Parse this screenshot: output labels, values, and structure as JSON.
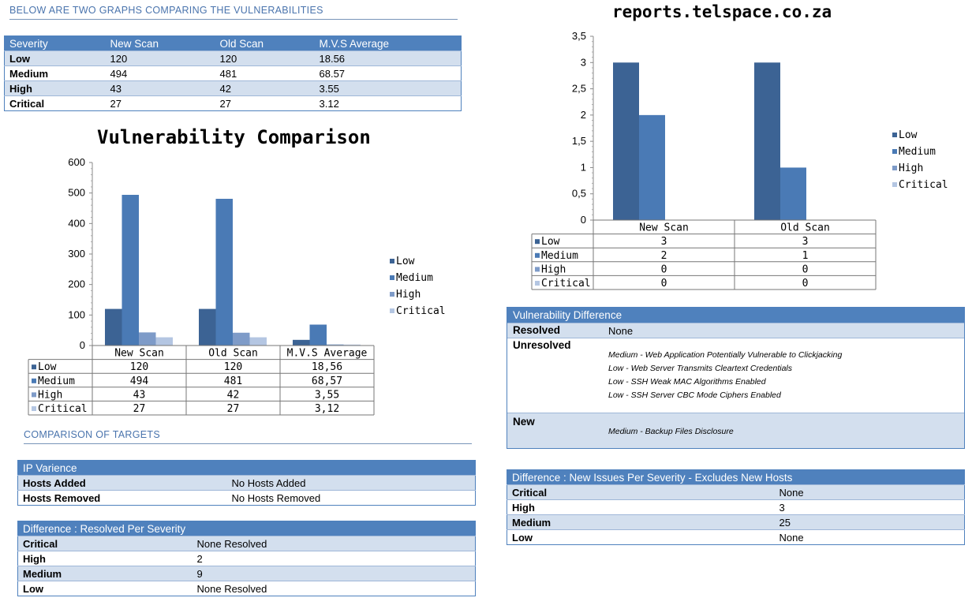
{
  "intro_heading": "BELOW ARE TWO GRAPHS COMPARING THE VULNERABILITIES",
  "summary_table": {
    "headers": [
      "Severity",
      "New Scan",
      "Old Scan",
      "M.V.S Average"
    ],
    "rows": [
      [
        "Low",
        "120",
        "120",
        "18.56"
      ],
      [
        "Medium",
        "494",
        "481",
        "68.57"
      ],
      [
        "High",
        "43",
        "42",
        "3.55"
      ],
      [
        "Critical",
        "27",
        "27",
        "3.12"
      ]
    ]
  },
  "colors": {
    "low": "#3c6394",
    "medium": "#4a7ab5",
    "high": "#7e9bc8",
    "critical": "#b4c6e2",
    "header": "#4f81bd",
    "alt_row": "#d3dfee"
  },
  "chart_data": [
    {
      "type": "bar",
      "title": "Vulnerability Comparison",
      "categories": [
        "New Scan",
        "Old Scan",
        "M.V.S Average"
      ],
      "series": [
        {
          "name": "Low",
          "values": [
            120,
            120,
            18.56
          ],
          "labels": [
            "120",
            "120",
            "18,56"
          ]
        },
        {
          "name": "Medium",
          "values": [
            494,
            481,
            68.57
          ],
          "labels": [
            "494",
            "481",
            "68,57"
          ]
        },
        {
          "name": "High",
          "values": [
            43,
            42,
            3.55
          ],
          "labels": [
            "43",
            "42",
            "3,55"
          ]
        },
        {
          "name": "Critical",
          "values": [
            27,
            27,
            3.12
          ],
          "labels": [
            "27",
            "27",
            "3,12"
          ]
        }
      ],
      "yticks": [
        "0",
        "100",
        "200",
        "300",
        "400",
        "500",
        "600"
      ],
      "ylim": [
        0,
        600
      ],
      "legend": "right",
      "data_table": true
    },
    {
      "type": "bar",
      "title": "reports.telspace.co.za",
      "categories": [
        "New Scan",
        "Old Scan"
      ],
      "series": [
        {
          "name": "Low",
          "values": [
            3,
            3
          ],
          "labels": [
            "3",
            "3"
          ]
        },
        {
          "name": "Medium",
          "values": [
            2,
            1
          ],
          "labels": [
            "2",
            "1"
          ]
        },
        {
          "name": "High",
          "values": [
            0,
            0
          ],
          "labels": [
            "0",
            "0"
          ]
        },
        {
          "name": "Critical",
          "values": [
            0,
            0
          ],
          "labels": [
            "0",
            "0"
          ]
        }
      ],
      "yticks": [
        "0",
        "0,5",
        "1",
        "1,5",
        "2",
        "2,5",
        "3",
        "3,5"
      ],
      "ylim": [
        0,
        3.5
      ],
      "legend": "right",
      "data_table": true
    }
  ],
  "comparison_heading": "COMPARISON OF TARGETS",
  "ip_variance": {
    "title": "IP Varience",
    "rows": [
      [
        "Hosts Added",
        "No Hosts Added"
      ],
      [
        "Hosts Removed",
        "No Hosts Removed"
      ]
    ]
  },
  "resolved_per_severity": {
    "title": "Difference : Resolved Per Severity",
    "rows": [
      [
        "Critical",
        "None Resolved"
      ],
      [
        "High",
        "2"
      ],
      [
        "Medium",
        "9"
      ],
      [
        "Low",
        "None Resolved"
      ]
    ]
  },
  "vuln_difference": {
    "title": "Vulnerability Difference",
    "resolved_label": "Resolved",
    "resolved_value": "None",
    "unresolved_label": "Unresolved",
    "unresolved_items": [
      "Medium - Web Application Potentially Vulnerable to Clickjacking",
      "Low - Web Server Transmits Cleartext Credentials",
      "Low - SSH Weak MAC Algorithms Enabled",
      "Low - SSH Server CBC Mode Ciphers Enabled"
    ],
    "new_label": "New",
    "new_items": [
      "Medium - Backup Files Disclosure"
    ]
  },
  "new_issues_per_severity": {
    "title": "Difference : New Issues Per Severity - Excludes New Hosts",
    "rows": [
      [
        "Critical",
        "None"
      ],
      [
        "High",
        "3"
      ],
      [
        "Medium",
        "25"
      ],
      [
        "Low",
        "None"
      ]
    ]
  }
}
